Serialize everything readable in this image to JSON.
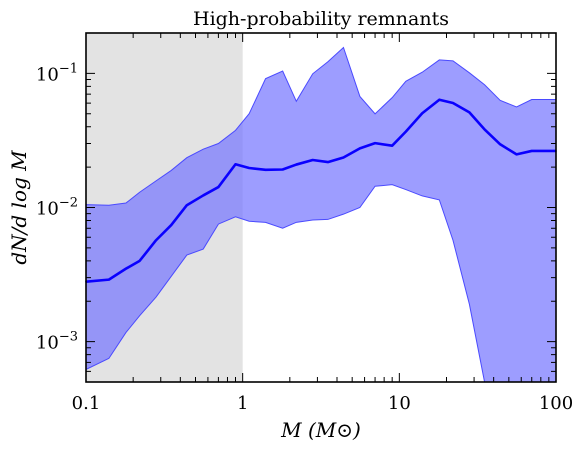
{
  "chart_data": {
    "type": "area",
    "title": "High-probability remnants",
    "xlabel": "M (M⊙)",
    "ylabel": "dN/d log M",
    "xscale": "log",
    "yscale": "log",
    "xlim": [
      0.1,
      100
    ],
    "ylim": [
      0.0005,
      0.2
    ],
    "x_ticks": [
      {
        "value": 0.1,
        "label": "0.1"
      },
      {
        "value": 1,
        "label": "1"
      },
      {
        "value": 10,
        "label": "10"
      },
      {
        "value": 100,
        "label": "100"
      }
    ],
    "y_ticks": [
      {
        "value": 0.001,
        "base": "10",
        "exp": "−3"
      },
      {
        "value": 0.01,
        "base": "10",
        "exp": "−2"
      },
      {
        "value": 0.1,
        "base": "10",
        "exp": "−1"
      }
    ],
    "shaded_region": {
      "x_from": 0.1,
      "x_to": 1,
      "color": "#e3e3e3"
    },
    "grid": false,
    "series": [
      {
        "x": [
          0.1,
          0.14,
          0.18,
          0.22,
          0.28,
          0.35,
          0.44,
          0.56,
          0.7,
          0.9,
          1.1,
          1.4,
          1.8,
          2.2,
          2.8,
          3.5,
          4.4,
          5.6,
          7,
          9,
          11,
          14,
          18,
          22,
          28,
          35,
          44,
          56,
          70,
          100
        ],
        "median": [
          0.0028,
          0.0029,
          0.0035,
          0.004,
          0.0057,
          0.0074,
          0.0104,
          0.0123,
          0.0142,
          0.021,
          0.0197,
          0.0191,
          0.0192,
          0.0209,
          0.0226,
          0.0218,
          0.0236,
          0.0276,
          0.0302,
          0.0289,
          0.0368,
          0.0504,
          0.0636,
          0.0601,
          0.0512,
          0.0382,
          0.0296,
          0.0249,
          0.0264,
          0.0264
        ],
        "upper": [
          0.0105,
          0.0104,
          0.0108,
          0.013,
          0.0158,
          0.0189,
          0.0235,
          0.0272,
          0.03,
          0.0376,
          0.05,
          0.0913,
          0.104,
          0.0619,
          0.0993,
          0.122,
          0.156,
          0.0673,
          0.0499,
          0.0659,
          0.0873,
          0.102,
          0.126,
          0.124,
          0.101,
          0.0822,
          0.0629,
          0.0562,
          0.0638,
          0.0638
        ],
        "lower": [
          0.00062,
          0.00075,
          0.00117,
          0.00156,
          0.00215,
          0.00307,
          0.00442,
          0.0049,
          0.00752,
          0.00852,
          0.0079,
          0.00774,
          0.00701,
          0.00775,
          0.00807,
          0.00815,
          0.00892,
          0.01,
          0.0144,
          0.0148,
          0.0136,
          0.0122,
          0.0114,
          0.0057,
          0.0019,
          0.0005,
          0.0005,
          0.0005,
          0.0005,
          0.0005
        ],
        "line_color": "#0a00ff",
        "band_color": "#7777ff"
      }
    ]
  }
}
